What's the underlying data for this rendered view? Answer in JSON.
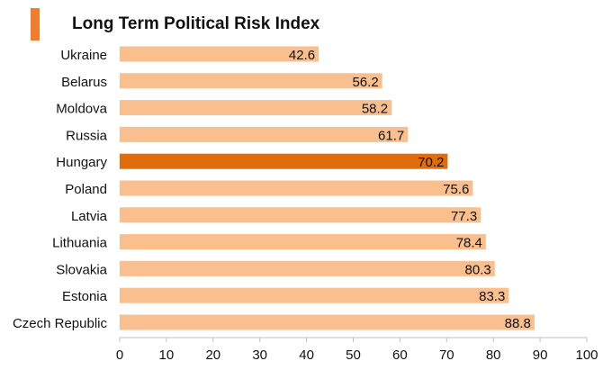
{
  "title": "Long Term Political Risk Index",
  "accent_color": "#ef7d2d",
  "chart_data": {
    "type": "bar",
    "orientation": "horizontal",
    "title": "Long Term Political Risk Index",
    "xlabel": "",
    "ylabel": "",
    "categories": [
      "Ukraine",
      "Belarus",
      "Moldova",
      "Russia",
      "Hungary",
      "Poland",
      "Latvia",
      "Lithuania",
      "Slovakia",
      "Estonia",
      "Czech Republic"
    ],
    "values": [
      42.6,
      56.2,
      58.2,
      61.7,
      70.2,
      75.6,
      77.3,
      78.4,
      80.3,
      83.3,
      88.8
    ],
    "data_labels": [
      "42.6",
      "56.2",
      "58.2",
      "61.7",
      "70.2",
      "75.6",
      "77.3",
      "78.4",
      "80.3",
      "83.3",
      "88.8"
    ],
    "xlim": [
      0,
      100
    ],
    "xticks": [
      0,
      10,
      20,
      30,
      40,
      50,
      60,
      70,
      80,
      90,
      100
    ],
    "grid": false,
    "legend": "none",
    "bar_color": "#f9bf8f",
    "highlight_category": "Hungary",
    "highlight_color": "#e06c0b"
  }
}
